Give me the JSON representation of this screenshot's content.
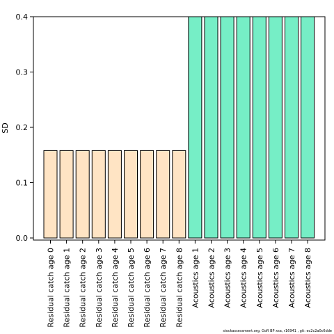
{
  "chart_data": {
    "type": "bar",
    "title": "",
    "xlabel": "",
    "ylabel": "SD",
    "ylim": [
      0,
      0.4
    ],
    "yticks": [
      "0.0",
      "0.1",
      "0.2",
      "0.3",
      "0.4"
    ],
    "grid": false,
    "legend": "none",
    "categories": [
      "Residual catch age 0",
      "Residual catch age 1",
      "Residual catch age 2",
      "Residual catch age 3",
      "Residual catch age 4",
      "Residual catch age 5",
      "Residual catch age 6",
      "Residual catch age 7",
      "Residual catch age 8",
      "Acoustics age 1",
      "Acoustics age 2",
      "Acoustics age 3",
      "Acoustics age 4",
      "Acoustics age 5",
      "Acoustics age 6",
      "Acoustics age 7",
      "Acoustics age 8"
    ],
    "values": [
      0.158,
      0.158,
      0.158,
      0.158,
      0.158,
      0.158,
      0.158,
      0.158,
      0.158,
      0.4,
      0.4,
      0.4,
      0.4,
      0.4,
      0.4,
      0.4,
      0.4
    ],
    "colors": {
      "residual": "#ffe4c4",
      "acoustics": "#76eec6",
      "outline": "#000000"
    }
  },
  "footer": "stockassessment.org, GoR BP xsa, r16941 , git: ec2c2a0c6dde"
}
